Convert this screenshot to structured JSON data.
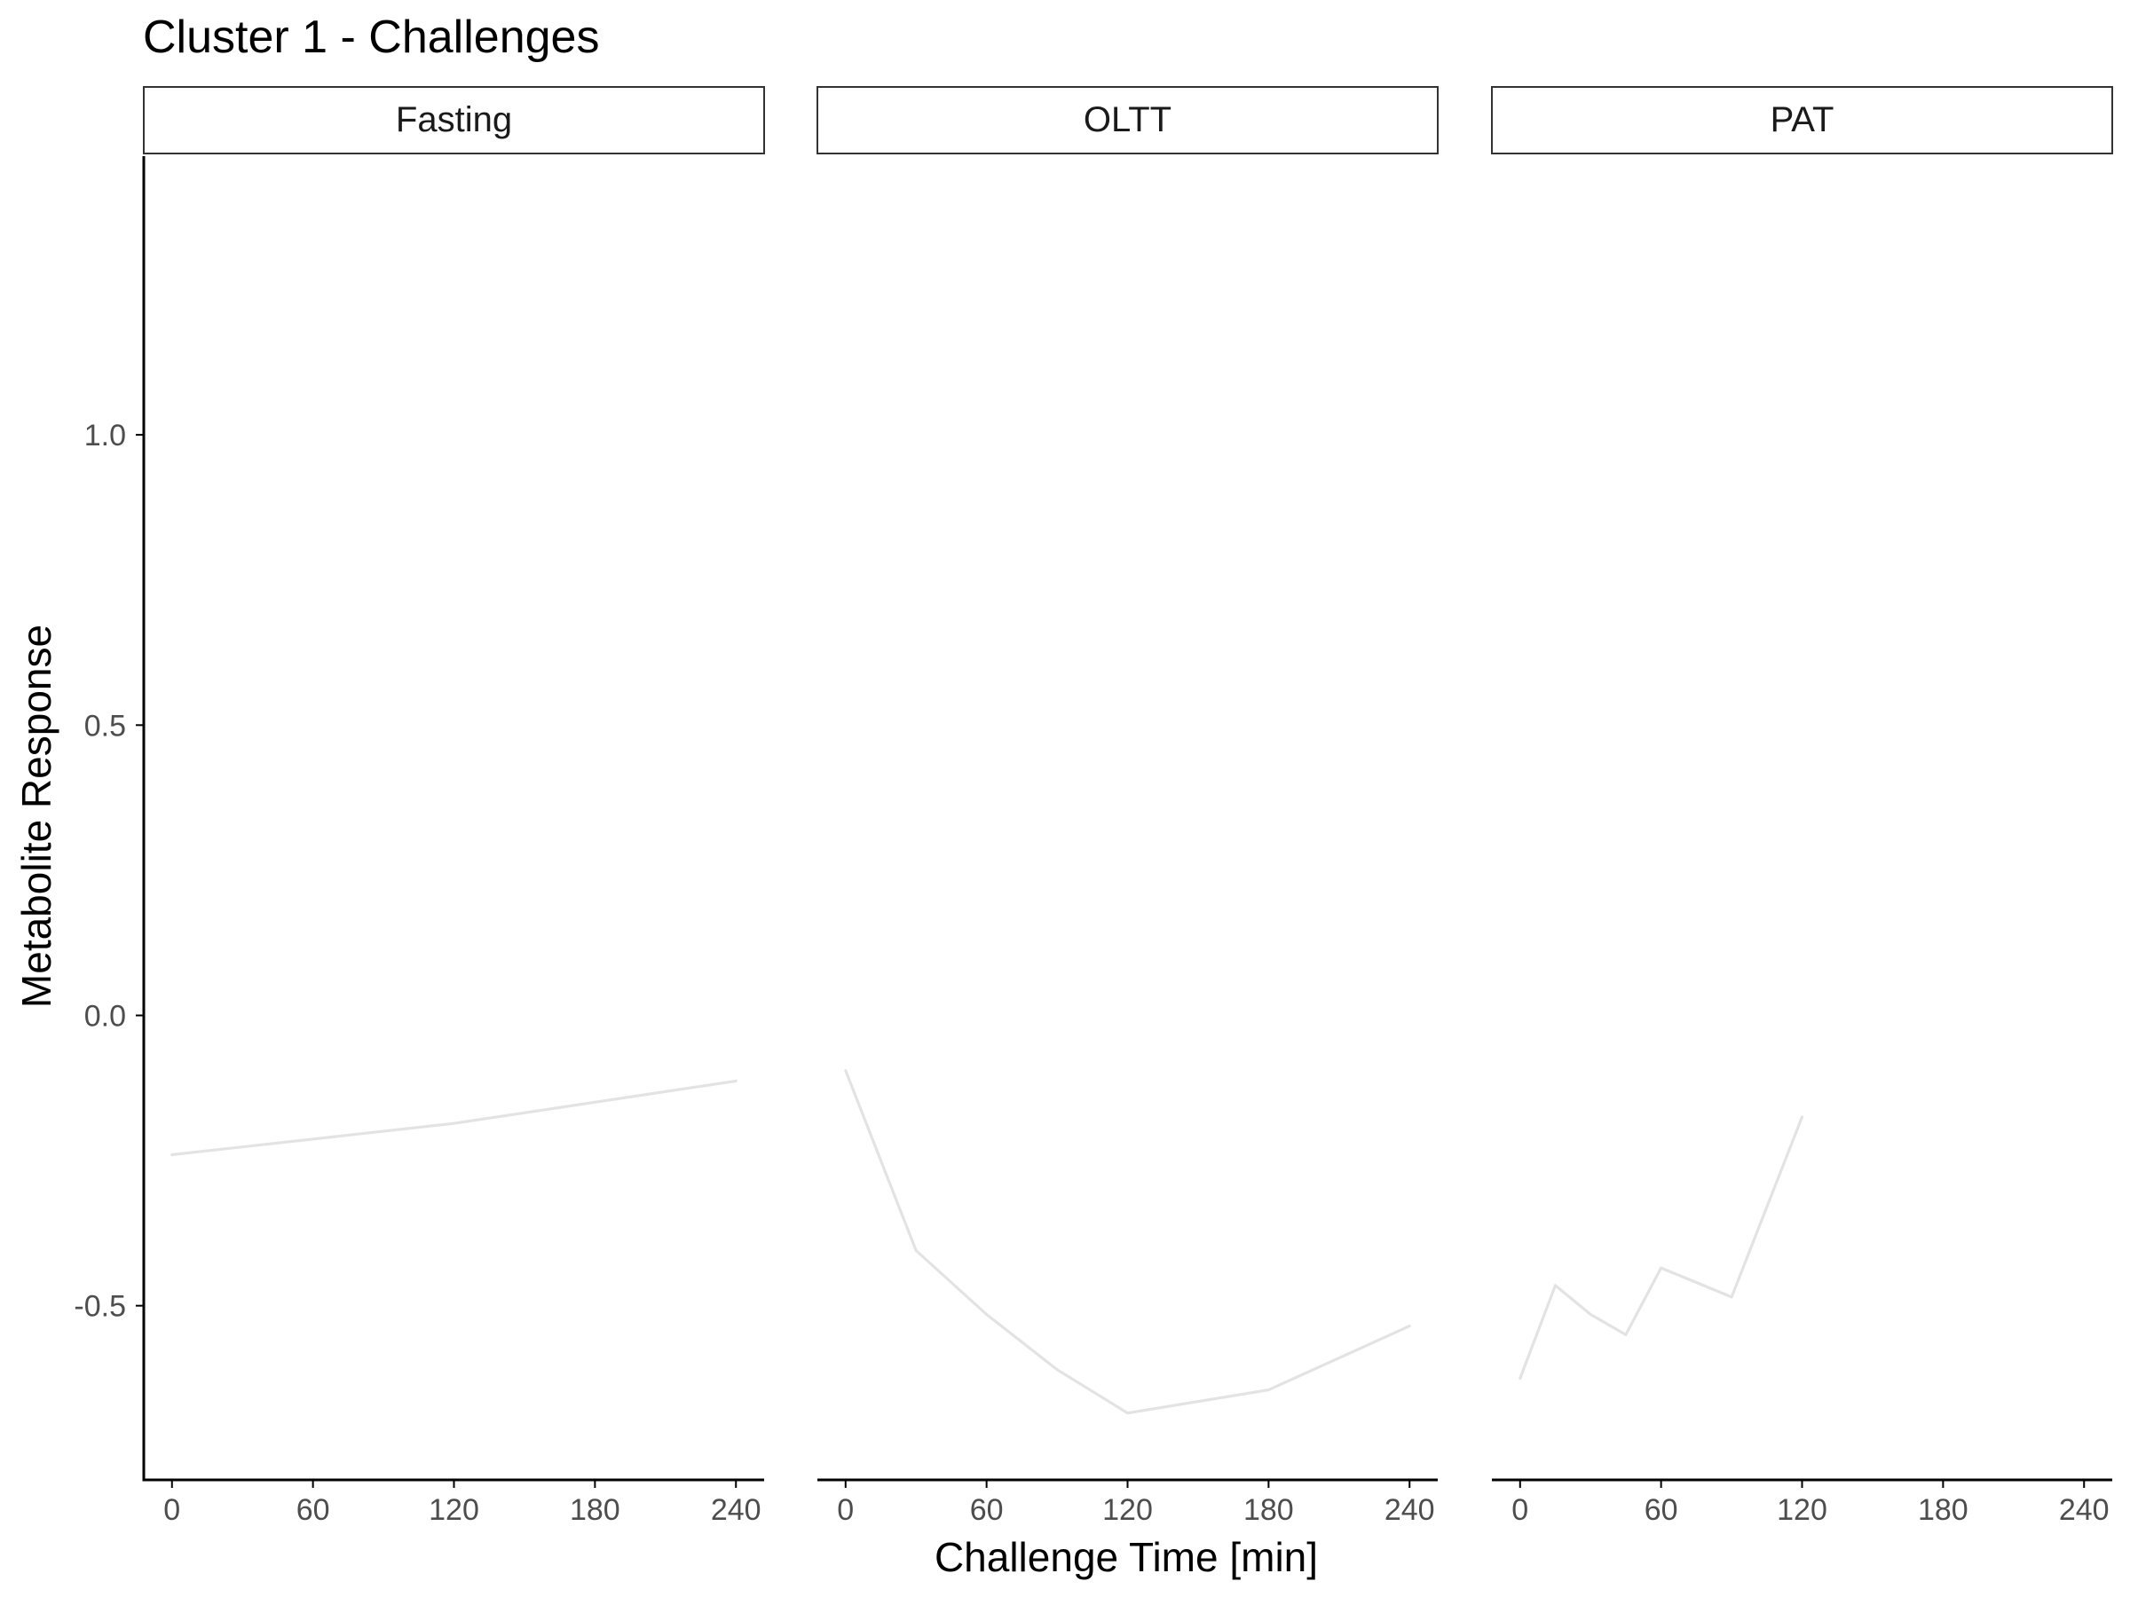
{
  "title": "Cluster 1 - Challenges",
  "xlabel": "Challenge Time [min]",
  "ylabel": "Metabolite Response",
  "colors": {
    "line": "#e3e3e3",
    "axis": "#000000",
    "strip_border": "#333333",
    "tick_text": "#4d4d4d"
  },
  "chart_data": {
    "type": "line",
    "title": "Cluster 1 - Challenges",
    "xlabel": "Challenge Time [min]",
    "ylabel": "Metabolite Response",
    "xlim": [
      -12,
      252
    ],
    "ylim": [
      -0.8,
      1.48
    ],
    "x_ticks": [
      0,
      60,
      120,
      180,
      240
    ],
    "y_ticks": [
      -0.5,
      0.0,
      0.5,
      1.0
    ],
    "x_tick_labels": [
      "0",
      "60",
      "120",
      "180",
      "240"
    ],
    "y_tick_labels": [
      "-0.5",
      "0.0",
      "0.5",
      "1.0"
    ],
    "grid": false,
    "facets": [
      {
        "label": "Fasting",
        "x": [
          0,
          120,
          240
        ],
        "y": [
          -0.24,
          -0.186,
          -0.113
        ]
      },
      {
        "label": "OLTT",
        "x": [
          0,
          30,
          60,
          90,
          120,
          180,
          240
        ],
        "y": [
          -0.095,
          -0.405,
          -0.515,
          -0.61,
          -0.685,
          -0.645,
          -0.535
        ]
      },
      {
        "label": "PAT",
        "x": [
          0,
          15,
          30,
          45,
          60,
          90,
          120
        ],
        "y": [
          -0.625,
          -0.465,
          -0.515,
          -0.55,
          -0.435,
          -0.485,
          -0.175
        ]
      }
    ]
  }
}
